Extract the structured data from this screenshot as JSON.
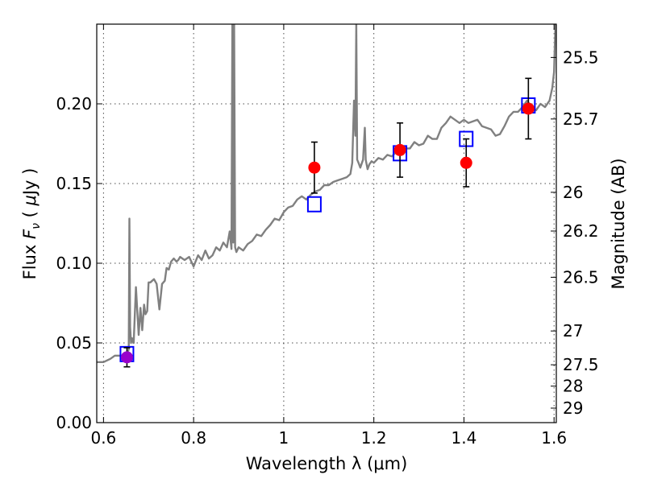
{
  "chart_data": {
    "type": "scatter",
    "xlabel": "Wavelength  λ (μm)",
    "ylabel_parts": [
      "Flux  ",
      "F",
      "ν",
      "  (  ",
      "μ",
      "Jy )"
    ],
    "y2label": "Magnitude (AB)",
    "xlim": [
      0.585,
      1.605
    ],
    "ylim": [
      0.0,
      0.25
    ],
    "grid": true,
    "x_ticks": [
      0.6,
      0.8,
      1.0,
      1.2,
      1.4,
      1.6
    ],
    "x_tick_labels": [
      "0.6",
      "0.8",
      "1",
      "1.2",
      "1.4",
      "1.6"
    ],
    "y_ticks": [
      0.0,
      0.05,
      0.1,
      0.15,
      0.2
    ],
    "y_tick_labels": [
      "0.00",
      "0.05",
      "0.10",
      "0.15",
      "0.20"
    ],
    "y2_tick_labels": [
      "25.5",
      "25.7",
      "26",
      "26.2",
      "26.5",
      "27",
      "27.5",
      "28",
      "29"
    ],
    "y2_tick_flux": [
      0.2291,
      0.1905,
      0.1445,
      0.1202,
      0.0912,
      0.0575,
      0.0363,
      0.0229,
      0.0091
    ],
    "colors": {
      "model": "#808080",
      "synthetic": "#0000ff",
      "observed": "#ff0000",
      "errorbar": "#000000",
      "overlap": "#9900cc"
    },
    "series": [
      {
        "type": "line",
        "x": [
          0.585,
          0.6,
          0.615,
          0.625,
          0.635,
          0.645,
          0.652,
          0.656,
          0.6575,
          0.659,
          0.661,
          0.663,
          0.667,
          0.672,
          0.678,
          0.682,
          0.686,
          0.69,
          0.693,
          0.697,
          0.7,
          0.704,
          0.708,
          0.712,
          0.718,
          0.724,
          0.73,
          0.736,
          0.74,
          0.745,
          0.75,
          0.756,
          0.762,
          0.766,
          0.77,
          0.775,
          0.78,
          0.79,
          0.8,
          0.81,
          0.818,
          0.826,
          0.834,
          0.842,
          0.85,
          0.858,
          0.866,
          0.874,
          0.88,
          0.884,
          0.886,
          0.888,
          0.89,
          0.892,
          0.895,
          0.9,
          0.91,
          0.92,
          0.93,
          0.94,
          0.95,
          0.96,
          0.97,
          0.98,
          0.99,
          1.0,
          1.01,
          1.02,
          1.03,
          1.04,
          1.05,
          1.06,
          1.07,
          1.08,
          1.09,
          1.1,
          1.11,
          1.12,
          1.13,
          1.14,
          1.148,
          1.152,
          1.156,
          1.159,
          1.161,
          1.163,
          1.166,
          1.17,
          1.176,
          1.18,
          1.182,
          1.186,
          1.19,
          1.195,
          1.2,
          1.21,
          1.22,
          1.23,
          1.24,
          1.25,
          1.26,
          1.27,
          1.28,
          1.29,
          1.3,
          1.31,
          1.32,
          1.33,
          1.34,
          1.35,
          1.36,
          1.37,
          1.38,
          1.39,
          1.4,
          1.41,
          1.42,
          1.43,
          1.44,
          1.45,
          1.46,
          1.47,
          1.48,
          1.49,
          1.5,
          1.51,
          1.52,
          1.53,
          1.54,
          1.55,
          1.56,
          1.57,
          1.58,
          1.59,
          1.596,
          1.6,
          1.603
        ],
        "y": [
          0.038,
          0.038,
          0.04,
          0.042,
          0.042,
          0.041,
          0.043,
          0.046,
          0.128,
          0.06,
          0.05,
          0.053,
          0.05,
          0.085,
          0.055,
          0.072,
          0.058,
          0.074,
          0.068,
          0.07,
          0.088,
          0.088,
          0.089,
          0.09,
          0.087,
          0.071,
          0.087,
          0.089,
          0.097,
          0.096,
          0.101,
          0.103,
          0.101,
          0.102,
          0.104,
          0.103,
          0.102,
          0.104,
          0.098,
          0.105,
          0.102,
          0.108,
          0.103,
          0.105,
          0.11,
          0.108,
          0.113,
          0.11,
          0.12,
          0.109,
          0.25,
          0.113,
          0.25,
          0.11,
          0.107,
          0.11,
          0.108,
          0.112,
          0.114,
          0.118,
          0.117,
          0.121,
          0.124,
          0.128,
          0.127,
          0.132,
          0.135,
          0.136,
          0.14,
          0.142,
          0.14,
          0.143,
          0.145,
          0.146,
          0.149,
          0.149,
          0.151,
          0.152,
          0.153,
          0.154,
          0.156,
          0.163,
          0.202,
          0.18,
          0.25,
          0.165,
          0.163,
          0.16,
          0.165,
          0.185,
          0.165,
          0.159,
          0.162,
          0.164,
          0.163,
          0.166,
          0.165,
          0.168,
          0.167,
          0.17,
          0.169,
          0.172,
          0.172,
          0.176,
          0.174,
          0.175,
          0.18,
          0.178,
          0.178,
          0.185,
          0.188,
          0.192,
          0.19,
          0.188,
          0.19,
          0.188,
          0.189,
          0.19,
          0.186,
          0.185,
          0.184,
          0.18,
          0.181,
          0.186,
          0.192,
          0.195,
          0.195,
          0.198,
          0.202,
          0.198,
          0.196,
          0.2,
          0.198,
          0.202,
          0.21,
          0.22,
          0.25
        ]
      },
      {
        "type": "scatter",
        "marker": "open-square",
        "x": [
          0.652,
          1.068,
          1.258,
          1.405,
          1.543
        ],
        "y": [
          0.043,
          0.137,
          0.169,
          0.178,
          0.199
        ]
      },
      {
        "type": "scatter",
        "marker": "filled-circle-errorbar",
        "x": [
          0.652,
          1.068,
          1.258,
          1.405,
          1.543
        ],
        "y": [
          0.041,
          0.16,
          0.171,
          0.163,
          0.197
        ],
        "err": [
          0.006,
          0.016,
          0.017,
          0.015,
          0.019
        ]
      }
    ]
  }
}
